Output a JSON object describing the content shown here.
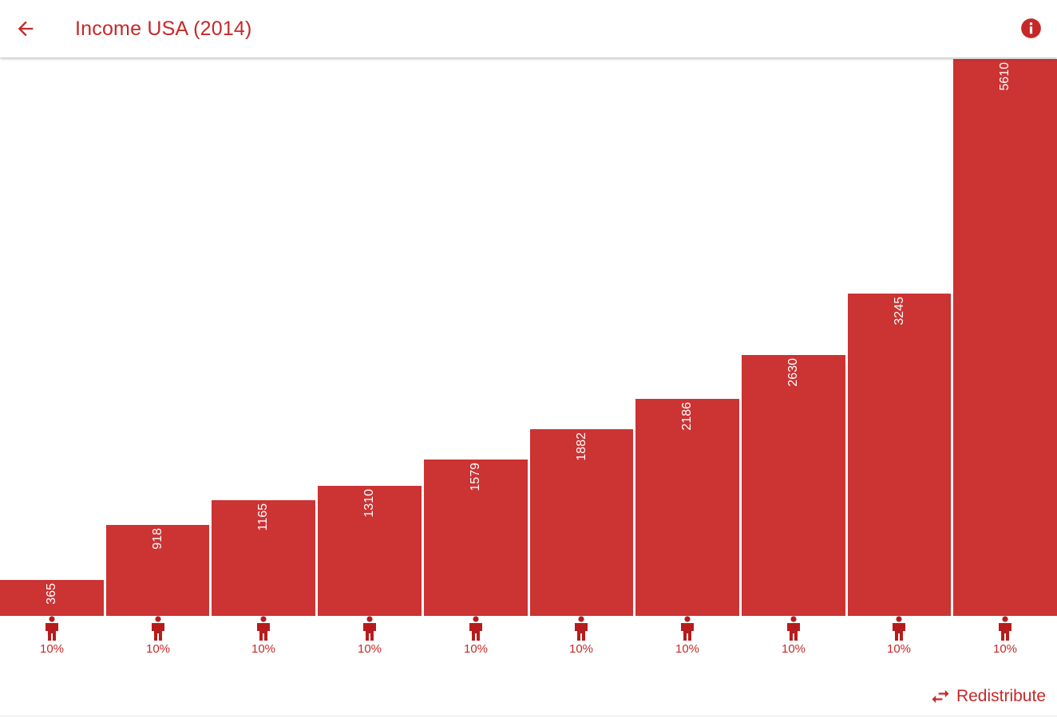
{
  "toolbar": {
    "title": "Income USA (2014)",
    "back_icon": "arrow-back-icon",
    "info_icon": "info-icon"
  },
  "colors": {
    "accent": "#c62828",
    "bar": "#cc3333",
    "background": "#ffffff"
  },
  "chart_data": {
    "type": "bar",
    "title": "",
    "xlabel": "",
    "ylabel": "",
    "categories": [
      "10%",
      "10%",
      "10%",
      "10%",
      "10%",
      "10%",
      "10%",
      "10%",
      "10%",
      "10%"
    ],
    "values": [
      365,
      918,
      1165,
      1310,
      1579,
      1882,
      2186,
      2630,
      3245,
      5610
    ],
    "ylim": [
      0,
      5610
    ],
    "grid": false,
    "legend": "none"
  },
  "people": {
    "icon": "person-icon",
    "labels": [
      "10%",
      "10%",
      "10%",
      "10%",
      "10%",
      "10%",
      "10%",
      "10%",
      "10%",
      "10%"
    ]
  },
  "actions": {
    "redistribute_label": "Redistribute",
    "redistribute_icon": "swap-horiz-icon"
  }
}
